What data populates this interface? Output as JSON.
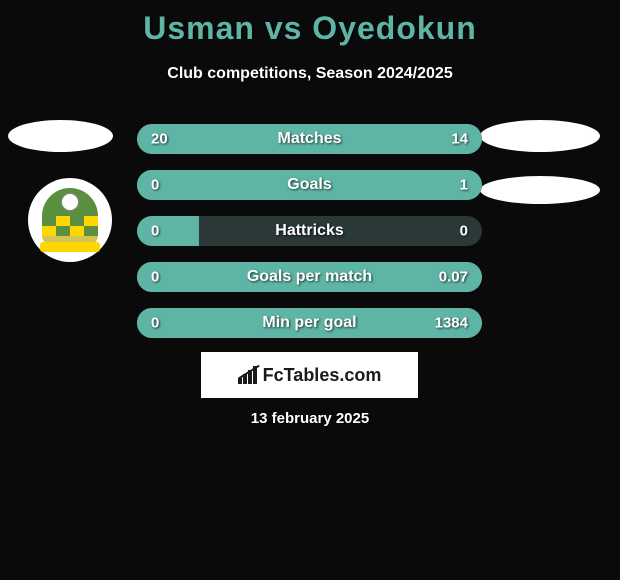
{
  "title": "Usman vs Oyedokun",
  "subtitle": "Club competitions, Season 2024/2025",
  "date": "13 february 2025",
  "branding_text": "FcTables.com",
  "colors": {
    "background": "#0a0a0a",
    "accent": "#5fb5a5",
    "bar_track": "#2a3838",
    "text": "#ffffff",
    "title": "#5fb5a5"
  },
  "stats": [
    {
      "label": "Matches",
      "left_value": "20",
      "right_value": "14",
      "left_pct": 58.8,
      "right_pct": 41.2
    },
    {
      "label": "Goals",
      "left_value": "0",
      "right_value": "1",
      "left_pct": 18,
      "right_pct": 100
    },
    {
      "label": "Hattricks",
      "left_value": "0",
      "right_value": "0",
      "left_pct": 18,
      "right_pct": 0
    },
    {
      "label": "Goals per match",
      "left_value": "0",
      "right_value": "0.07",
      "left_pct": 18,
      "right_pct": 100
    },
    {
      "label": "Min per goal",
      "left_value": "0",
      "right_value": "1384",
      "left_pct": 18,
      "right_pct": 100
    }
  ]
}
